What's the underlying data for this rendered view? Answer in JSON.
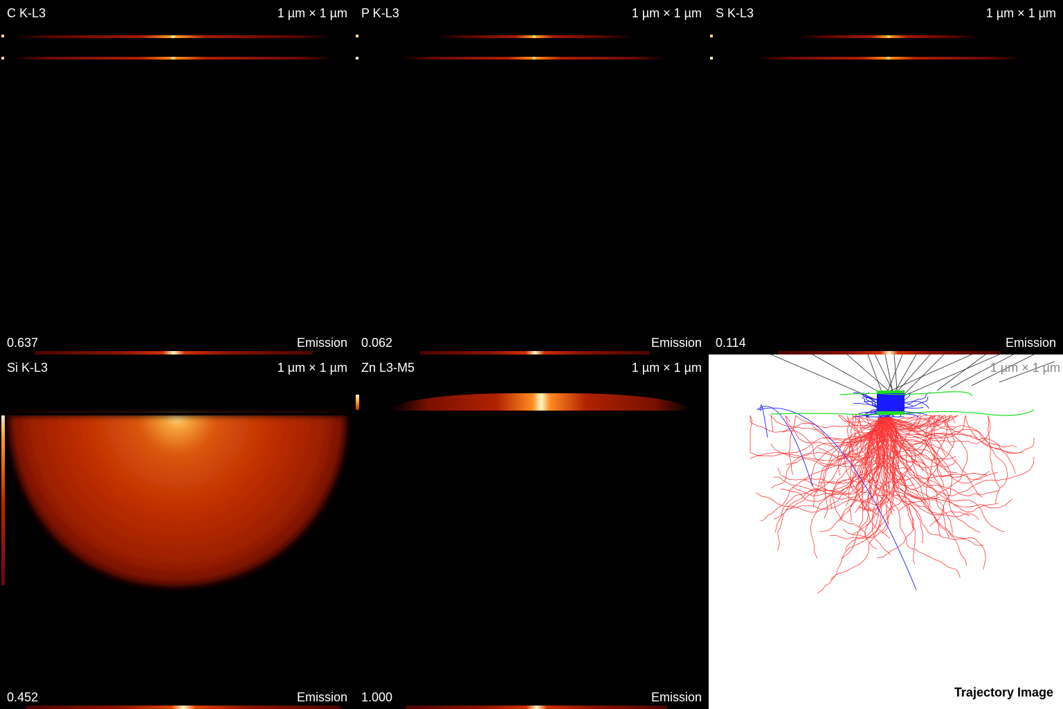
{
  "panels": [
    {
      "title": "C K-L3",
      "scale": "1 µm × 1 µm",
      "max": "0.637",
      "mode": "Emission"
    },
    {
      "title": "P K-L3",
      "scale": "1 µm × 1 µm",
      "max": "0.062",
      "mode": "Emission"
    },
    {
      "title": "S K-L3",
      "scale": "1 µm × 1 µm",
      "max": "0.114",
      "mode": "Emission"
    },
    {
      "title": "Si K-L3",
      "scale": "1 µm × 1 µm",
      "max": "0.452",
      "mode": "Emission"
    },
    {
      "title": "Zn L3-M5",
      "scale": "1 µm × 1 µm",
      "max": "1.000",
      "mode": "Emission"
    }
  ],
  "trajectory": {
    "scale": "1 µm × 1 µm",
    "title": "Trajectory Image"
  },
  "colors": {
    "dark": "#5a0500",
    "mid": "#b52000",
    "hot": "#ff8a00",
    "peak": "#fff6c0",
    "electron": "#ff2020",
    "backscatter": "#1a1aff",
    "xray": "#22dd22",
    "beam": "#222222"
  }
}
